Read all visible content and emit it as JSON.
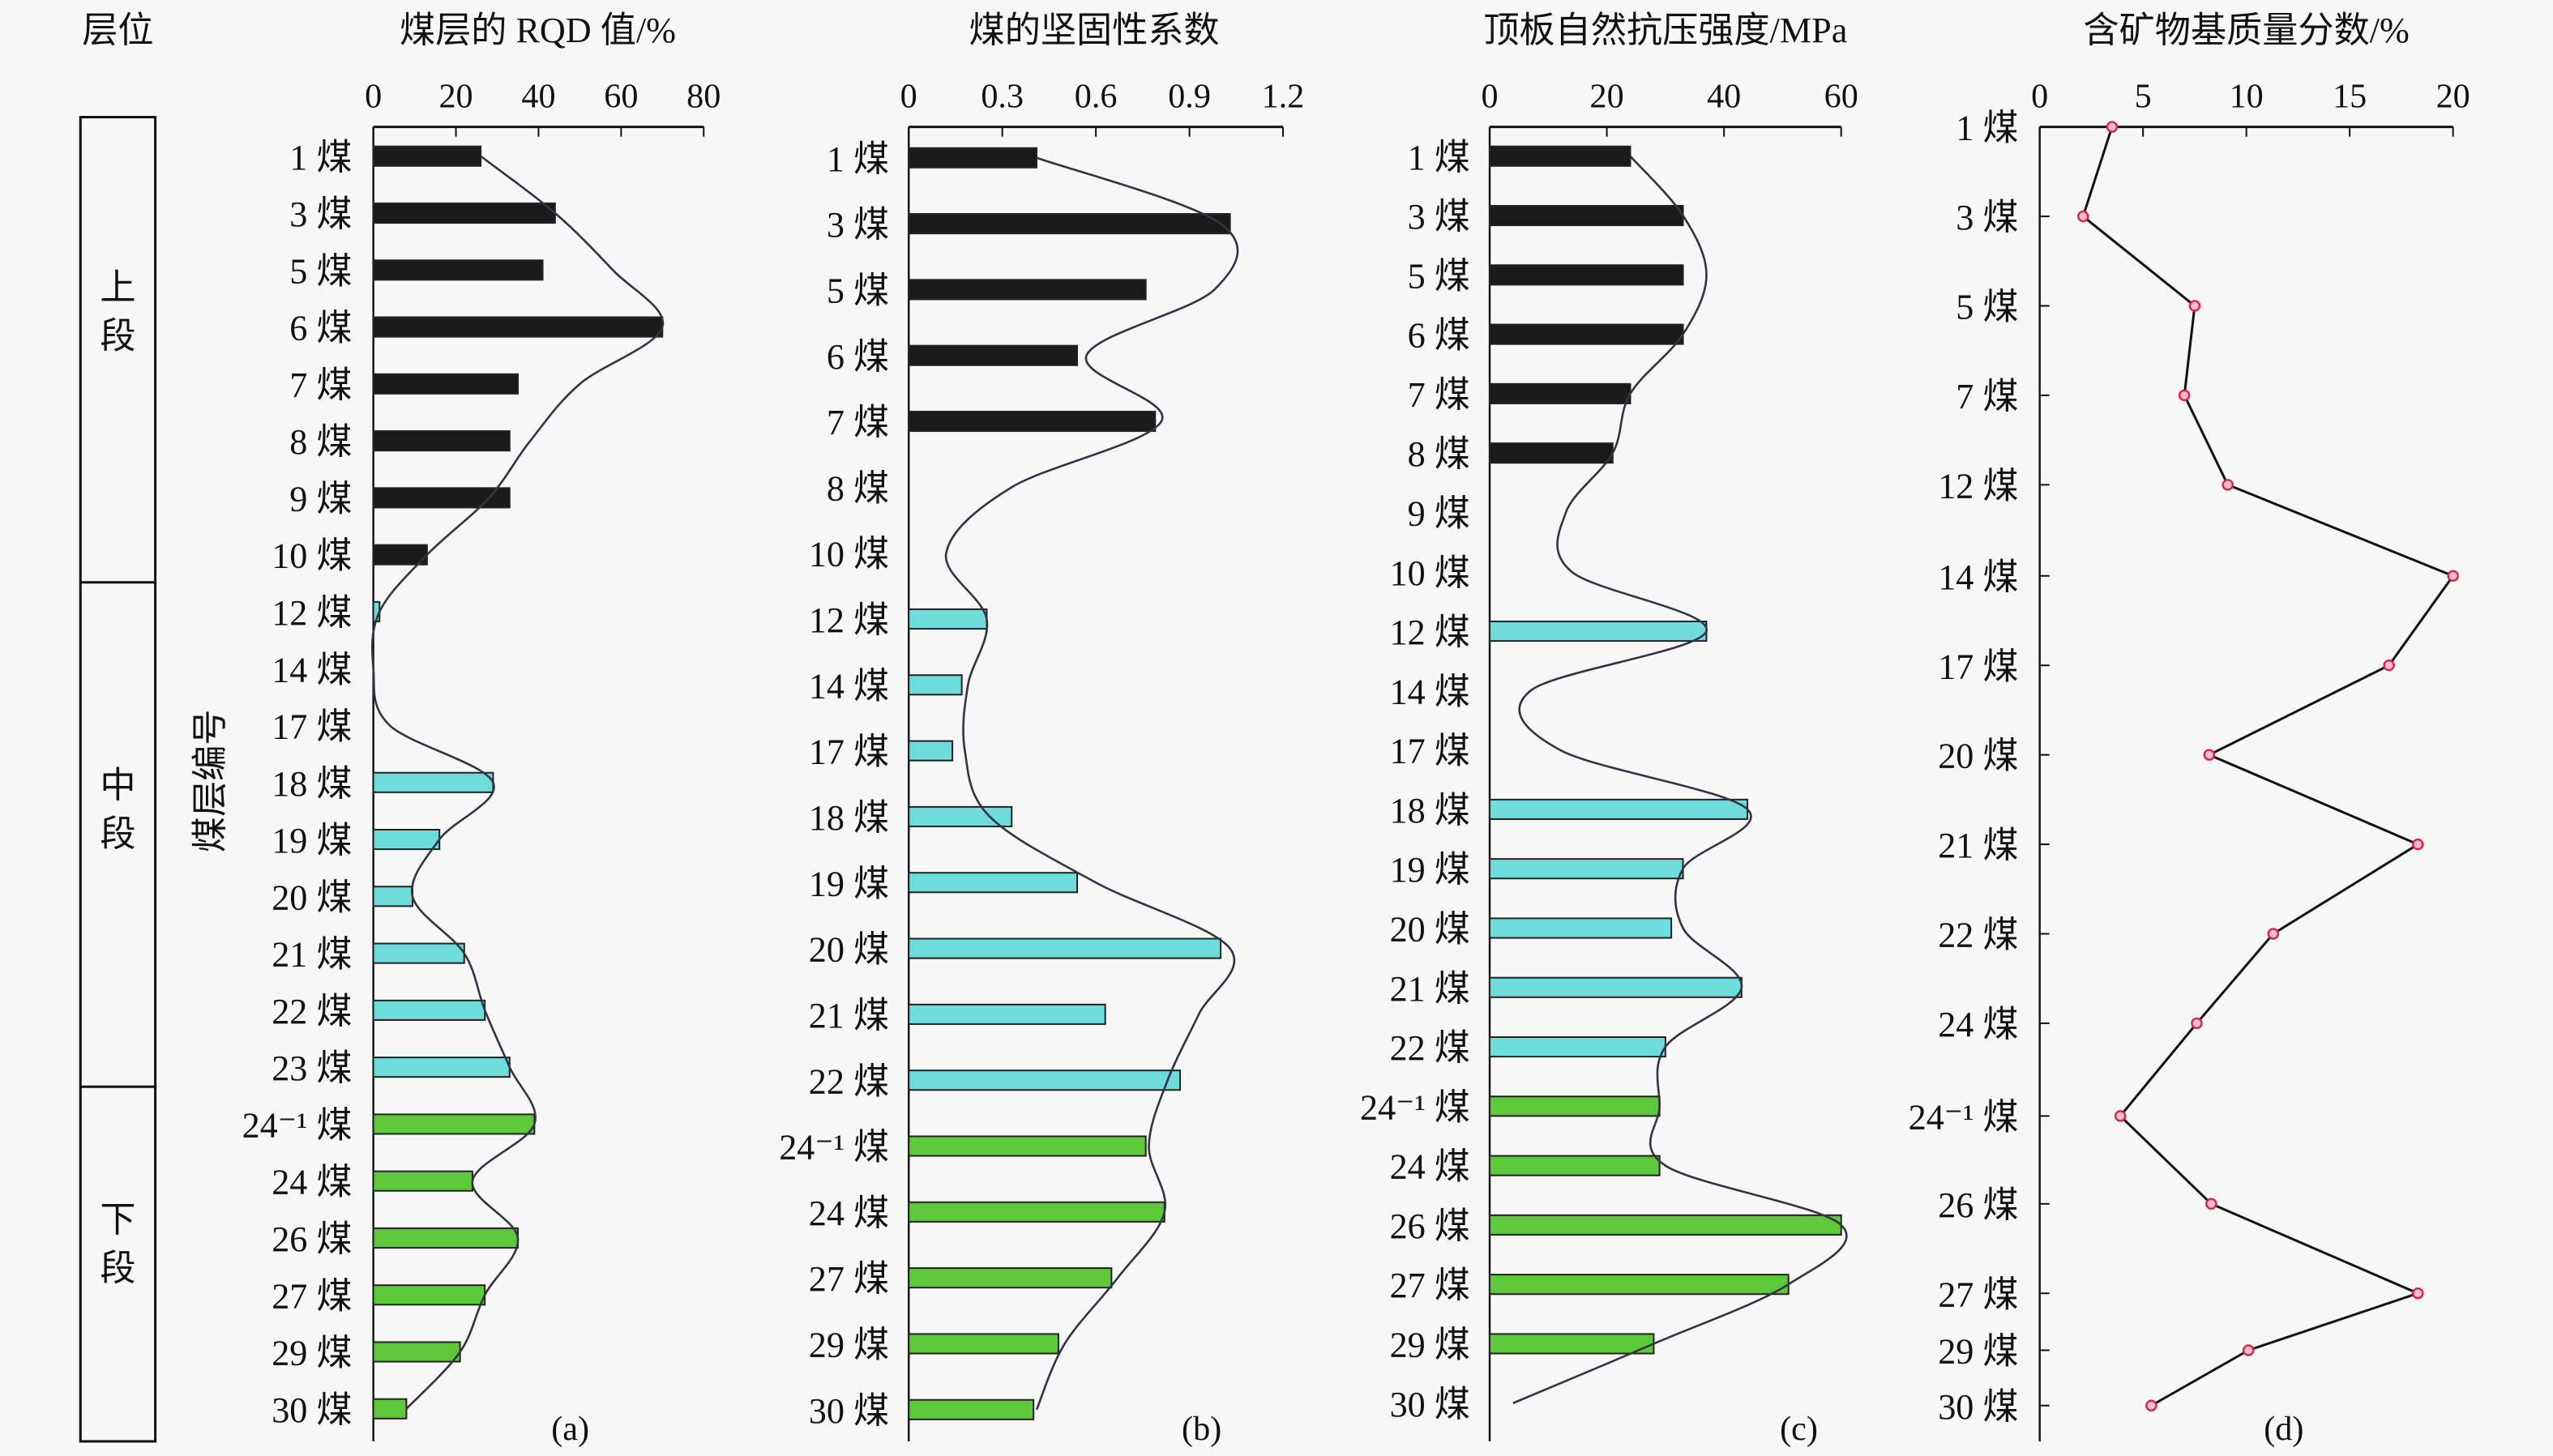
{
  "strata": {
    "header": "层位",
    "seam_axis_label": "煤层编号",
    "sections": [
      "上段",
      "中段",
      "下段"
    ]
  },
  "colors": {
    "upper": "#1a1a1a",
    "middle": "#6fdcdc",
    "lower": "#5cc83a",
    "trend": "#333344",
    "marker": "#e0204a"
  },
  "chart_data": [
    {
      "type": "bar",
      "panel_label": "(a)",
      "title": "煤层的 RQD 值/%",
      "xlim": [
        0,
        80
      ],
      "xticks": [
        0,
        20,
        40,
        60,
        80
      ],
      "categories": [
        "1 煤",
        "3 煤",
        "5 煤",
        "6 煤",
        "7 煤",
        "8 煤",
        "9 煤",
        "10 煤",
        "12 煤",
        "14 煤",
        "17 煤",
        "18 煤",
        "19 煤",
        "20 煤",
        "21 煤",
        "22 煤",
        "23 煤",
        "24⁻¹ 煤",
        "24 煤",
        "26 煤",
        "27 煤",
        "29 煤",
        "30 煤"
      ],
      "section": [
        "upper",
        "upper",
        "upper",
        "upper",
        "upper",
        "upper",
        "upper",
        "upper",
        "middle",
        "middle",
        "middle",
        "middle",
        "middle",
        "middle",
        "middle",
        "middle",
        "middle",
        "lower",
        "lower",
        "lower",
        "lower",
        "lower",
        "lower"
      ],
      "values": [
        26,
        44,
        41,
        70,
        35,
        33,
        33,
        13,
        1.5,
        null,
        null,
        29,
        16,
        9.5,
        22,
        27,
        33,
        39,
        24,
        35,
        27,
        21,
        8
      ],
      "trend": [
        26,
        44,
        58,
        70,
        50,
        38,
        28,
        13,
        1.5,
        0,
        4,
        29,
        16,
        9.5,
        22,
        27,
        33,
        39,
        24,
        35,
        27,
        21,
        8
      ]
    },
    {
      "type": "bar",
      "panel_label": "(b)",
      "title": "煤的坚固性系数",
      "xlim": [
        0,
        1.2
      ],
      "xticks": [
        "0",
        "0.3",
        "0.6",
        "0.9",
        "1.2"
      ],
      "categories": [
        "1 煤",
        "3 煤",
        "5 煤",
        "6 煤",
        "7 煤",
        "8 煤",
        "10 煤",
        "12 煤",
        "14 煤",
        "17 煤",
        "18 煤",
        "19 煤",
        "20 煤",
        "21 煤",
        "22 煤",
        "24⁻¹ 煤",
        "24 煤",
        "27 煤",
        "29 煤",
        "30 煤"
      ],
      "section": [
        "upper",
        "upper",
        "upper",
        "upper",
        "upper",
        "upper",
        "middle",
        "middle",
        "middle",
        "middle",
        "middle",
        "middle",
        "middle",
        "middle",
        "middle",
        "lower",
        "lower",
        "lower",
        "lower",
        "lower"
      ],
      "values": [
        0.41,
        1.03,
        0.76,
        0.54,
        0.79,
        null,
        null,
        0.25,
        0.17,
        0.14,
        0.33,
        0.54,
        1.0,
        0.63,
        0.87,
        0.76,
        0.82,
        0.65,
        0.48,
        0.4
      ],
      "trend": [
        0.41,
        1.0,
        0.98,
        0.57,
        0.81,
        0.33,
        0.12,
        0.25,
        0.19,
        0.18,
        0.26,
        0.6,
        1.03,
        0.93,
        0.83,
        0.77,
        0.82,
        0.67,
        0.5,
        0.41
      ]
    },
    {
      "type": "bar",
      "panel_label": "(c)",
      "title": "顶板自然抗压强度/MPa",
      "xlim": [
        0,
        60
      ],
      "xticks": [
        0,
        20,
        40,
        60
      ],
      "categories": [
        "1 煤",
        "3 煤",
        "5 煤",
        "6 煤",
        "7 煤",
        "8 煤",
        "9 煤",
        "10 煤",
        "12 煤",
        "14 煤",
        "17 煤",
        "18 煤",
        "19 煤",
        "20 煤",
        "21 煤",
        "22 煤",
        "24⁻¹ 煤",
        "24 煤",
        "26 煤",
        "27 煤",
        "29 煤",
        "30 煤"
      ],
      "section": [
        "upper",
        "upper",
        "upper",
        "upper",
        "upper",
        "upper",
        "upper",
        "middle",
        "middle",
        "middle",
        "middle",
        "middle",
        "middle",
        "middle",
        "middle",
        "middle",
        "lower",
        "lower",
        "lower",
        "lower",
        "lower",
        "lower"
      ],
      "values": [
        24,
        33,
        33,
        33,
        24,
        21,
        null,
        null,
        37,
        null,
        null,
        44,
        33,
        31,
        43,
        30,
        29,
        29,
        60,
        51,
        28,
        null
      ],
      "trend": [
        24,
        33,
        37,
        33,
        24,
        21,
        13,
        14,
        37,
        7,
        12,
        44,
        33,
        33,
        43,
        30,
        29,
        30,
        60,
        51,
        28,
        4
      ]
    },
    {
      "type": "line",
      "panel_label": "(d)",
      "title": "含矿物基质量分数/%",
      "xlim": [
        0,
        20
      ],
      "xticks": [
        0,
        5,
        10,
        15,
        20
      ],
      "categories": [
        "1 煤",
        "3 煤",
        "5 煤",
        "7 煤",
        "12 煤",
        "14 煤",
        "17 煤",
        "20 煤",
        "21 煤",
        "22 煤",
        "24 煤",
        "24⁻¹ 煤",
        "26 煤",
        "27 煤",
        "29 煤",
        "30 煤"
      ],
      "values": [
        3.5,
        2.1,
        7.5,
        7.0,
        9.1,
        20,
        16.9,
        8.2,
        18.3,
        11.3,
        7.6,
        3.9,
        8.3,
        18.3,
        10.1,
        5.4
      ]
    }
  ]
}
